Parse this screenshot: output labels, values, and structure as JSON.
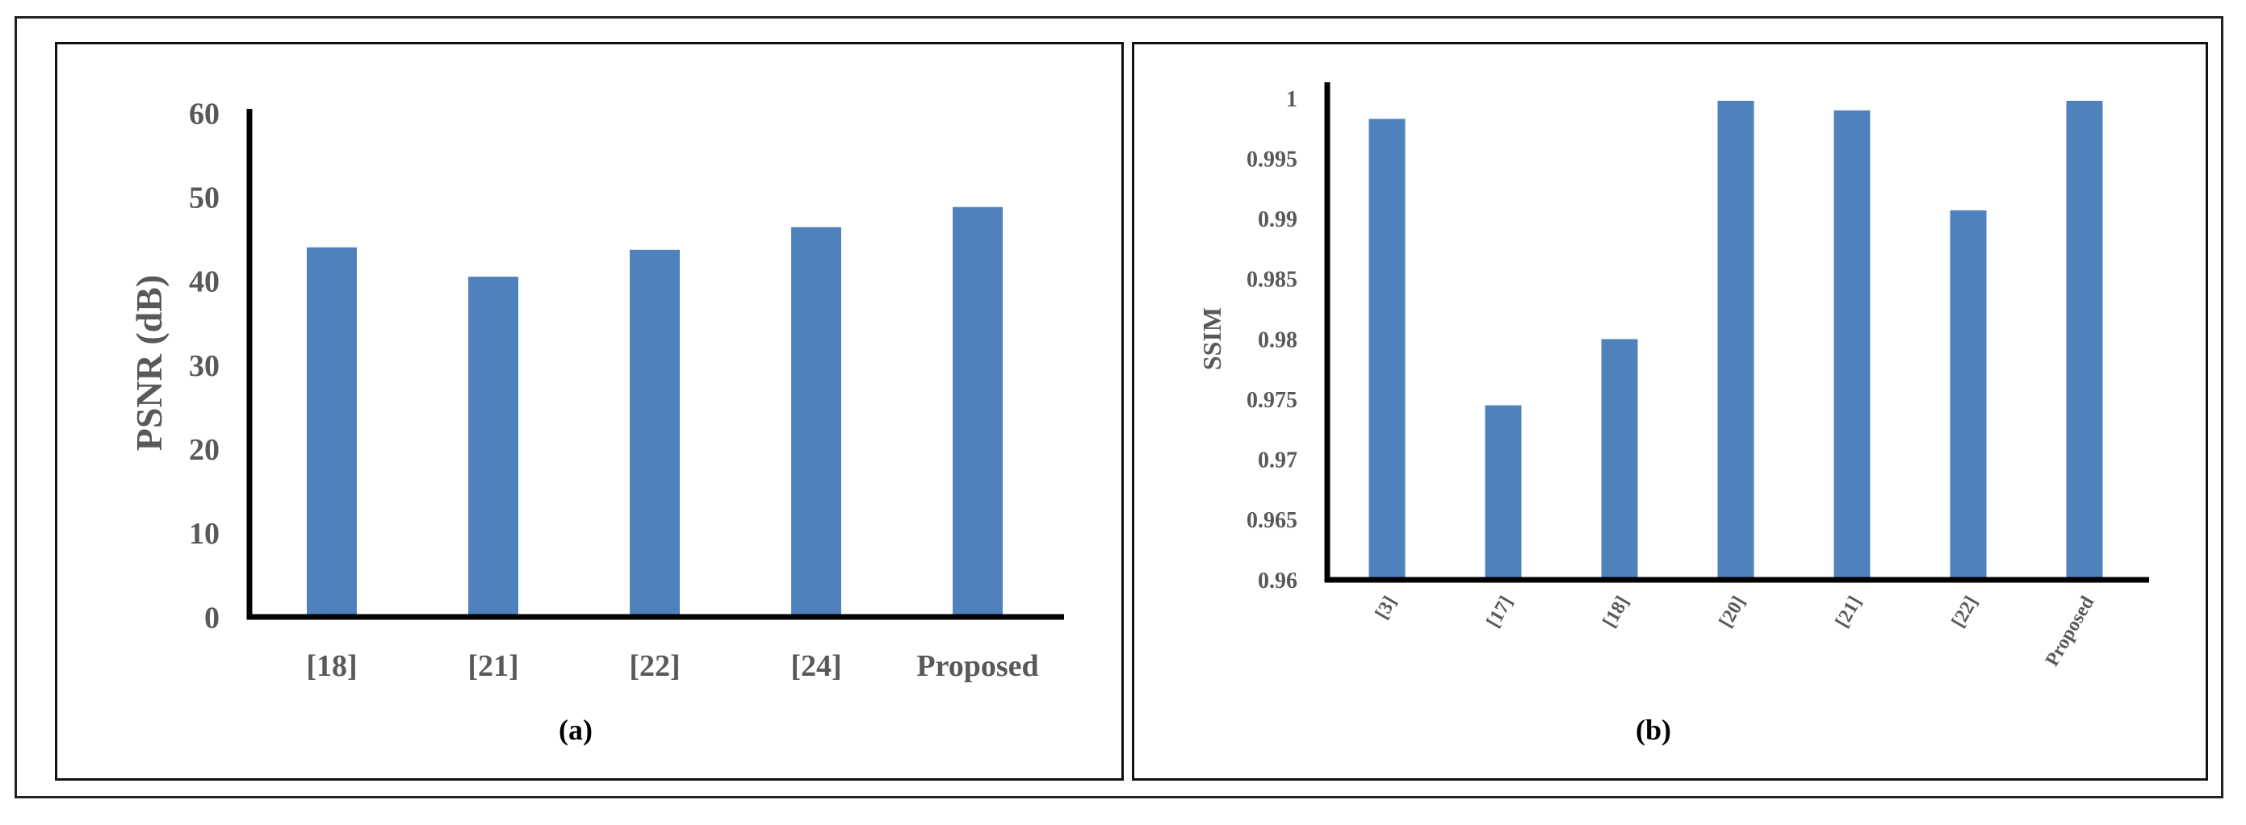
{
  "chart_data": [
    {
      "type": "bar",
      "panel_label": "(a)",
      "ylabel": "PSNR (dB)",
      "categories": [
        "[18]",
        "[21]",
        "[22]",
        "[24]",
        "Proposed"
      ],
      "values": [
        44,
        40.5,
        43.7,
        46.4,
        48.8
      ],
      "ylim": [
        0,
        60
      ],
      "yticks": [
        "0",
        "10",
        "20",
        "30",
        "40",
        "50",
        "60"
      ],
      "grid": false,
      "bar_color": "#4f81bd"
    },
    {
      "type": "bar",
      "panel_label": "(b)",
      "ylabel": "SSIM",
      "categories": [
        "[3]",
        "[17]",
        "[18]",
        "[20]",
        "[21]",
        "[22]",
        "Proposed"
      ],
      "values": [
        0.9983,
        0.9745,
        0.98,
        0.9998,
        0.999,
        0.9907,
        0.9998
      ],
      "ylim": [
        0.96,
        1
      ],
      "yticks": [
        "0.96",
        "0.965",
        "0.97",
        "0.975",
        "0.98",
        "0.985",
        "0.99",
        "0.995",
        "1"
      ],
      "grid": false,
      "bar_color": "#4f81bd"
    }
  ]
}
